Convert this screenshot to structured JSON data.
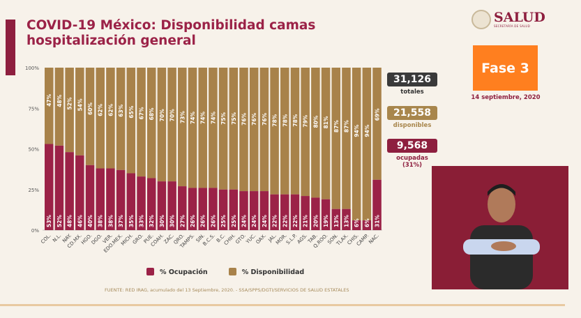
{
  "title": "COVID-19 México: Disponibilidad camas hospitalización general",
  "logo": {
    "name": "SALUD",
    "subtitle": "SECRETARÍA DE SALUD"
  },
  "phase": "Fase 3",
  "date": "14 septiembre, 2020",
  "stats": [
    {
      "value": "31,126",
      "label": "totales",
      "color": "#3a3a3a",
      "label_color": "#333333"
    },
    {
      "value": "21,558",
      "label": "disponibles",
      "color": "#a8864c",
      "label_color": "#a8864c"
    },
    {
      "value": "9,568",
      "label": "ocupadas (31%)",
      "color": "#8e1f3f",
      "label_color": "#8e1f3f"
    }
  ],
  "source": "FUENTE: RED IRAG, acumulado del 13 Septiembre, 2020. -  SSA/SPPS/DGTI/SERVICIOS DE SALUD ESTATALES",
  "colors": {
    "ocupacion": "#9b2247",
    "disponibilidad": "#a8824a"
  },
  "chart_data": {
    "type": "bar",
    "stacked": true,
    "percent": true,
    "categories": [
      "COL.",
      "N.L.",
      "NAY.",
      "CD.MX.",
      "HGO.",
      "DGO.",
      "VER.",
      "EDO.MEX.",
      "MICH.",
      "GRO.",
      "PUE.",
      "COAH.",
      "ZAC.",
      "QRO.",
      "TAMPS.",
      "SIN.",
      "B.C.S.",
      "B.C.",
      "CHIH.",
      "GTO.",
      "YUC.",
      "OAX.",
      "JAL.",
      "MOR.",
      "S.L.P.",
      "AGS.",
      "TAB.",
      "Q.ROO.",
      "SON.",
      "TLAX.",
      "CHIS.",
      "CAMP.",
      "NAC."
    ],
    "series": [
      {
        "name": "% Ocupación",
        "values": [
          53,
          52,
          48,
          46,
          40,
          38,
          38,
          37,
          35,
          33,
          32,
          30,
          30,
          27,
          26,
          26,
          26,
          25,
          25,
          24,
          24,
          24,
          22,
          22,
          22,
          21,
          20,
          19,
          13,
          13,
          6,
          6,
          31
        ]
      },
      {
        "name": "% Disponibilidad",
        "values": [
          47,
          48,
          52,
          54,
          60,
          62,
          62,
          63,
          65,
          67,
          68,
          70,
          70,
          73,
          74,
          74,
          74,
          75,
          75,
          76,
          76,
          76,
          78,
          78,
          78,
          79,
          80,
          81,
          87,
          87,
          94,
          94,
          69
        ]
      }
    ],
    "yticks": [
      "0%",
      "25%",
      "50%",
      "75%",
      "100%"
    ],
    "ylim": [
      0,
      100
    ],
    "legend": "bottom"
  }
}
